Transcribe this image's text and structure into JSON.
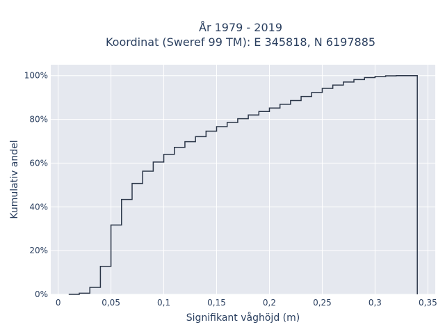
{
  "chart_data": {
    "type": "line",
    "title_lines": [
      "År 1979 - 2019",
      "Koordinat (Sweref 99 TM): E 345818, N 6197885"
    ],
    "xlabel": "Signifikant våghöjd (m)",
    "ylabel": "Kumulativ andel",
    "xlim": [
      -0.007,
      0.357
    ],
    "ylim": [
      0,
      1.05
    ],
    "x_ticks": [
      {
        "value": 0,
        "label": "0"
      },
      {
        "value": 0.05,
        "label": "0,05"
      },
      {
        "value": 0.1,
        "label": "0,1"
      },
      {
        "value": 0.15,
        "label": "0,15"
      },
      {
        "value": 0.2,
        "label": "0,2"
      },
      {
        "value": 0.25,
        "label": "0,25"
      },
      {
        "value": 0.3,
        "label": "0,3"
      },
      {
        "value": 0.35,
        "label": "0,35"
      }
    ],
    "y_ticks": [
      {
        "value": 0,
        "label": "0%"
      },
      {
        "value": 0.2,
        "label": "20%"
      },
      {
        "value": 0.4,
        "label": "40%"
      },
      {
        "value": 0.6,
        "label": "60%"
      },
      {
        "value": 0.8,
        "label": "80%"
      },
      {
        "value": 1.0,
        "label": "100%"
      }
    ],
    "grid": true,
    "line_color": "#2a3547",
    "plot_bg": "#e5e8ef",
    "step_edges": [
      0.01,
      0.02,
      0.03,
      0.04,
      0.05,
      0.06,
      0.07,
      0.08,
      0.09,
      0.1,
      0.11,
      0.12,
      0.13,
      0.14,
      0.15,
      0.16,
      0.17,
      0.18,
      0.19,
      0.2,
      0.21,
      0.22,
      0.23,
      0.24,
      0.25,
      0.26,
      0.27,
      0.28,
      0.29,
      0.3,
      0.31,
      0.32,
      0.33,
      0.34
    ],
    "step_values": [
      0.0,
      0.005,
      0.032,
      0.128,
      0.317,
      0.434,
      0.507,
      0.563,
      0.605,
      0.64,
      0.672,
      0.698,
      0.721,
      0.746,
      0.767,
      0.786,
      0.803,
      0.82,
      0.836,
      0.852,
      0.869,
      0.886,
      0.905,
      0.923,
      0.942,
      0.957,
      0.971,
      0.982,
      0.991,
      0.996,
      0.999,
      1.0,
      1.0
    ],
    "end_drop": 0.0
  }
}
